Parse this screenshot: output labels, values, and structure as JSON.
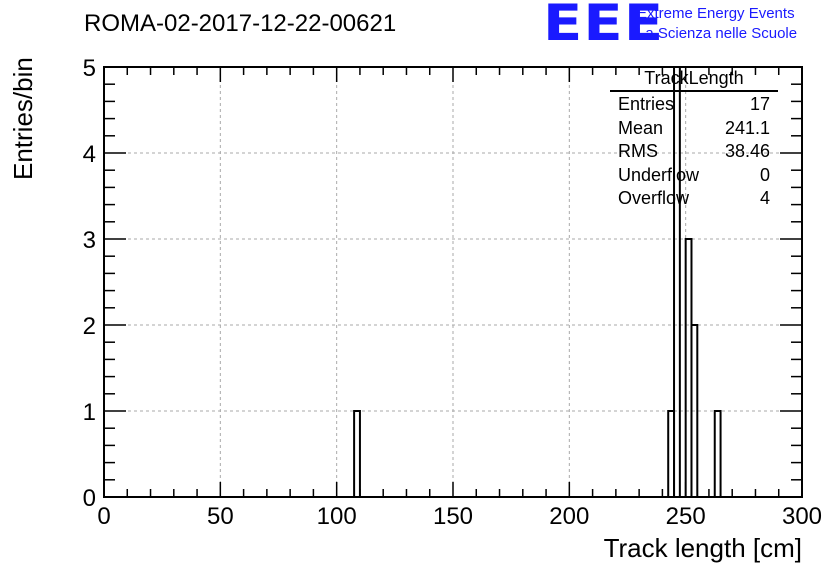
{
  "title": "ROMA-02-2017-12-22-00621",
  "logo": {
    "mark": "EEE",
    "line1": "Extreme Energy Events",
    "line2": "La Scienza nelle Scuole"
  },
  "chart_data": {
    "type": "bar",
    "title": "ROMA-02-2017-12-22-00621",
    "xlabel": "Track length [cm]",
    "ylabel": "Entries/bin",
    "xlim": [
      0,
      300
    ],
    "ylim": [
      0,
      5
    ],
    "x_ticks": [
      0,
      50,
      100,
      150,
      200,
      250,
      300
    ],
    "y_ticks": [
      0,
      1,
      2,
      3,
      4,
      5
    ],
    "grid": true,
    "bin_width": 2.5,
    "bins": [
      {
        "x": 107.5,
        "value": 1
      },
      {
        "x": 242.5,
        "value": 1
      },
      {
        "x": 245,
        "value": 5
      },
      {
        "x": 250,
        "value": 3
      },
      {
        "x": 252.5,
        "value": 2
      },
      {
        "x": 262.5,
        "value": 1
      }
    ]
  },
  "stats": {
    "name": "TrackLength",
    "rows": [
      {
        "label": "Entries",
        "value": "17"
      },
      {
        "label": "Mean",
        "value": "241.1"
      },
      {
        "label": "RMS",
        "value": "38.46"
      },
      {
        "label": "Underflow",
        "value": "0"
      },
      {
        "label": "Overflow",
        "value": "4"
      }
    ]
  }
}
